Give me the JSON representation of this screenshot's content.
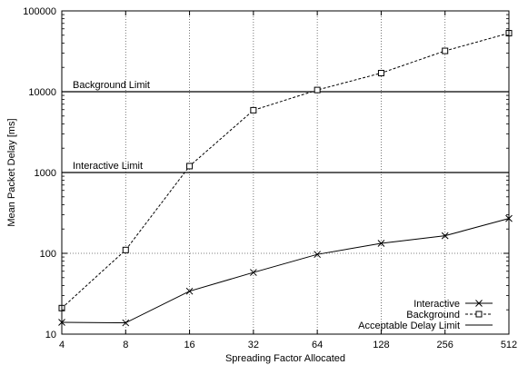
{
  "chart_data": {
    "type": "line",
    "xlabel": "Spreading Factor Allocated",
    "ylabel": "Mean Packet Delay [ms]",
    "x_scale": "log2",
    "y_scale": "log10",
    "xlim": [
      4,
      512
    ],
    "ylim": [
      10,
      100000
    ],
    "x_ticks": [
      4,
      8,
      16,
      32,
      64,
      128,
      256,
      512
    ],
    "y_ticks": [
      10,
      100,
      1000,
      10000,
      100000
    ],
    "grid": true,
    "legend_position": "bottom-right",
    "series": [
      {
        "name": "Interactive",
        "style": "solid",
        "marker": "x",
        "x": [
          4,
          8,
          16,
          32,
          64,
          128,
          256,
          512
        ],
        "values": [
          14,
          13.8,
          34,
          58,
          97,
          133,
          165,
          270
        ]
      },
      {
        "name": "Background",
        "style": "dashed",
        "marker": "square",
        "x": [
          4,
          8,
          16,
          32,
          64,
          128,
          256,
          512
        ],
        "values": [
          21,
          110,
          1200,
          5900,
          10500,
          17000,
          32000,
          53000
        ]
      }
    ],
    "reference_lines": [
      {
        "label": "Background Limit",
        "value": 10000
      },
      {
        "label": "Interactive Limit",
        "value": 1000
      }
    ],
    "reference_legend": "Acceptable Delay Limit"
  }
}
